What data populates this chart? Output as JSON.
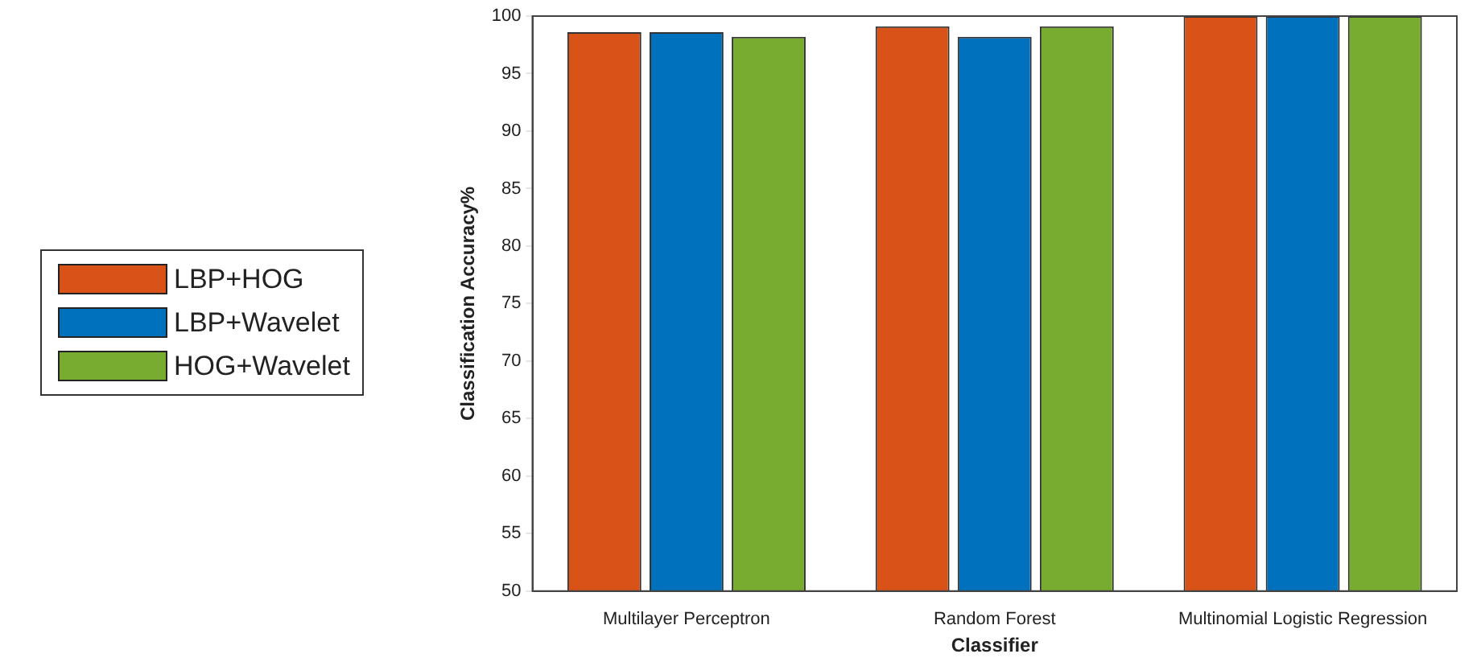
{
  "chart_data": {
    "type": "bar",
    "xlabel": "Classifier",
    "ylabel": "Classification Accuracy%",
    "categories": [
      "Multilayer Perceptron",
      "Random Forest",
      "Multinomial Logistic Regression"
    ],
    "series": [
      {
        "name": "LBP+HOG",
        "color": "#d95319",
        "values": [
          98.6,
          99.1,
          100
        ]
      },
      {
        "name": "LBP+Wavelet",
        "color": "#0072bd",
        "values": [
          98.6,
          98.2,
          100
        ]
      },
      {
        "name": "HOG+Wavelet",
        "color": "#77ac30",
        "values": [
          98.2,
          99.1,
          100
        ]
      }
    ],
    "ylim": [
      50,
      100
    ],
    "yticks": [
      50,
      55,
      60,
      65,
      70,
      75,
      80,
      85,
      90,
      95,
      100
    ],
    "grid": false,
    "legend": "left"
  }
}
